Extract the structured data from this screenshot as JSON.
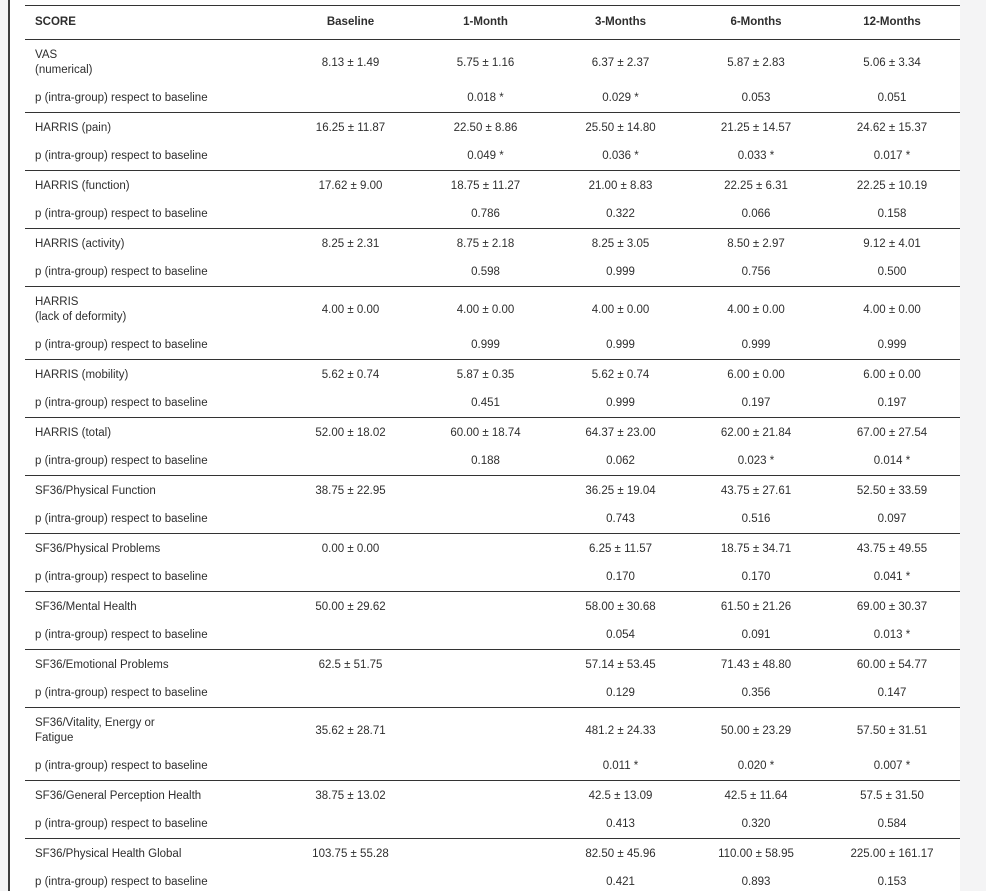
{
  "colors": {
    "page_bg": "#f4f4f5",
    "panel_border": "#3d3d3d",
    "rule": "#333333",
    "text": "#2e2e2e"
  },
  "table": {
    "columns": [
      "SCORE",
      "Baseline",
      "1-Month",
      "3-Months",
      "6-Months",
      "12-Months"
    ],
    "p_row_label": "p (intra-group) respect to baseline",
    "groups": [
      {
        "label_lines": [
          "VAS",
          "(numerical)"
        ],
        "values": [
          "8.13 ± 1.49",
          "5.75 ± 1.16",
          "6.37 ± 2.37",
          "5.87 ± 2.83",
          "5.06 ± 3.34"
        ],
        "p_values": [
          "",
          "0.018 *",
          "0.029 *",
          "0.053",
          "0.051"
        ]
      },
      {
        "label_lines": [
          "HARRIS (pain)"
        ],
        "values": [
          "16.25 ± 11.87",
          "22.50 ± 8.86",
          "25.50 ± 14.80",
          "21.25 ± 14.57",
          "24.62 ± 15.37"
        ],
        "p_values": [
          "",
          "0.049 *",
          "0.036 *",
          "0.033 *",
          "0.017 *"
        ]
      },
      {
        "label_lines": [
          "HARRIS (function)"
        ],
        "values": [
          "17.62 ± 9.00",
          "18.75 ± 11.27",
          "21.00 ± 8.83",
          "22.25 ± 6.31",
          "22.25 ± 10.19"
        ],
        "p_values": [
          "",
          "0.786",
          "0.322",
          "0.066",
          "0.158"
        ]
      },
      {
        "label_lines": [
          "HARRIS (activity)"
        ],
        "values": [
          "8.25 ± 2.31",
          "8.75 ± 2.18",
          "8.25 ± 3.05",
          "8.50 ± 2.97",
          "9.12 ± 4.01"
        ],
        "p_values": [
          "",
          "0.598",
          "0.999",
          "0.756",
          "0.500"
        ]
      },
      {
        "label_lines": [
          "HARRIS",
          "(lack of deformity)"
        ],
        "values": [
          "4.00 ± 0.00",
          "4.00 ± 0.00",
          "4.00 ± 0.00",
          "4.00 ± 0.00",
          "4.00 ± 0.00"
        ],
        "p_values": [
          "",
          "0.999",
          "0.999",
          "0.999",
          "0.999"
        ]
      },
      {
        "label_lines": [
          "HARRIS (mobility)"
        ],
        "values": [
          "5.62 ± 0.74",
          "5.87 ± 0.35",
          "5.62 ± 0.74",
          "6.00 ± 0.00",
          "6.00 ± 0.00"
        ],
        "p_values": [
          "",
          "0.451",
          "0.999",
          "0.197",
          "0.197"
        ]
      },
      {
        "label_lines": [
          "HARRIS (total)"
        ],
        "values": [
          "52.00 ± 18.02",
          "60.00 ± 18.74",
          "64.37 ± 23.00",
          "62.00 ± 21.84",
          "67.00 ± 27.54"
        ],
        "p_values": [
          "",
          "0.188",
          "0.062",
          "0.023 *",
          "0.014 *"
        ]
      },
      {
        "label_lines": [
          "SF36/Physical Function"
        ],
        "values": [
          "38.75 ± 22.95",
          "",
          "36.25 ± 19.04",
          "43.75 ± 27.61",
          "52.50 ± 33.59"
        ],
        "p_values": [
          "",
          "",
          "0.743",
          "0.516",
          "0.097"
        ]
      },
      {
        "label_lines": [
          "SF36/Physical Problems"
        ],
        "values": [
          "0.00 ± 0.00",
          "",
          "6.25 ± 11.57",
          "18.75 ± 34.71",
          "43.75 ± 49.55"
        ],
        "p_values": [
          "",
          "",
          "0.170",
          "0.170",
          "0.041 *"
        ]
      },
      {
        "label_lines": [
          "SF36/Mental Health"
        ],
        "values": [
          "50.00 ± 29.62",
          "",
          "58.00 ± 30.68",
          "61.50 ± 21.26",
          "69.00 ± 30.37"
        ],
        "p_values": [
          "",
          "",
          "0.054",
          "0.091",
          "0.013 *"
        ]
      },
      {
        "label_lines": [
          "SF36/Emotional Problems"
        ],
        "values": [
          "62.5 ± 51.75",
          "",
          "57.14 ± 53.45",
          "71.43 ± 48.80",
          "60.00 ± 54.77"
        ],
        "p_values": [
          "",
          "",
          "0.129",
          "0.356",
          "0.147"
        ]
      },
      {
        "label_lines": [
          "SF36/Vitality, Energy or",
          "Fatigue"
        ],
        "values": [
          "35.62 ± 28.71",
          "",
          "481.2 ± 24.33",
          "50.00 ± 23.29",
          "57.50 ± 31.51"
        ],
        "p_values": [
          "",
          "",
          "0.011 *",
          "0.020 *",
          "0.007 *"
        ]
      },
      {
        "label_lines": [
          "SF36/General Perception Health"
        ],
        "values": [
          "38.75 ± 13.02",
          "",
          "42.5 ± 13.09",
          "42.5 ± 11.64",
          "57.5 ± 31.50"
        ],
        "p_values": [
          "",
          "",
          "0.413",
          "0.320",
          "0.584"
        ]
      },
      {
        "label_lines": [
          "SF36/Physical Health Global"
        ],
        "values": [
          "103.75 ± 55.28",
          "",
          "82.50 ± 45.96",
          "110.00 ± 58.95",
          "225.00 ± 161.17"
        ],
        "p_values": [
          "",
          "",
          "0.421",
          "0.893",
          "0.153"
        ]
      }
    ]
  }
}
